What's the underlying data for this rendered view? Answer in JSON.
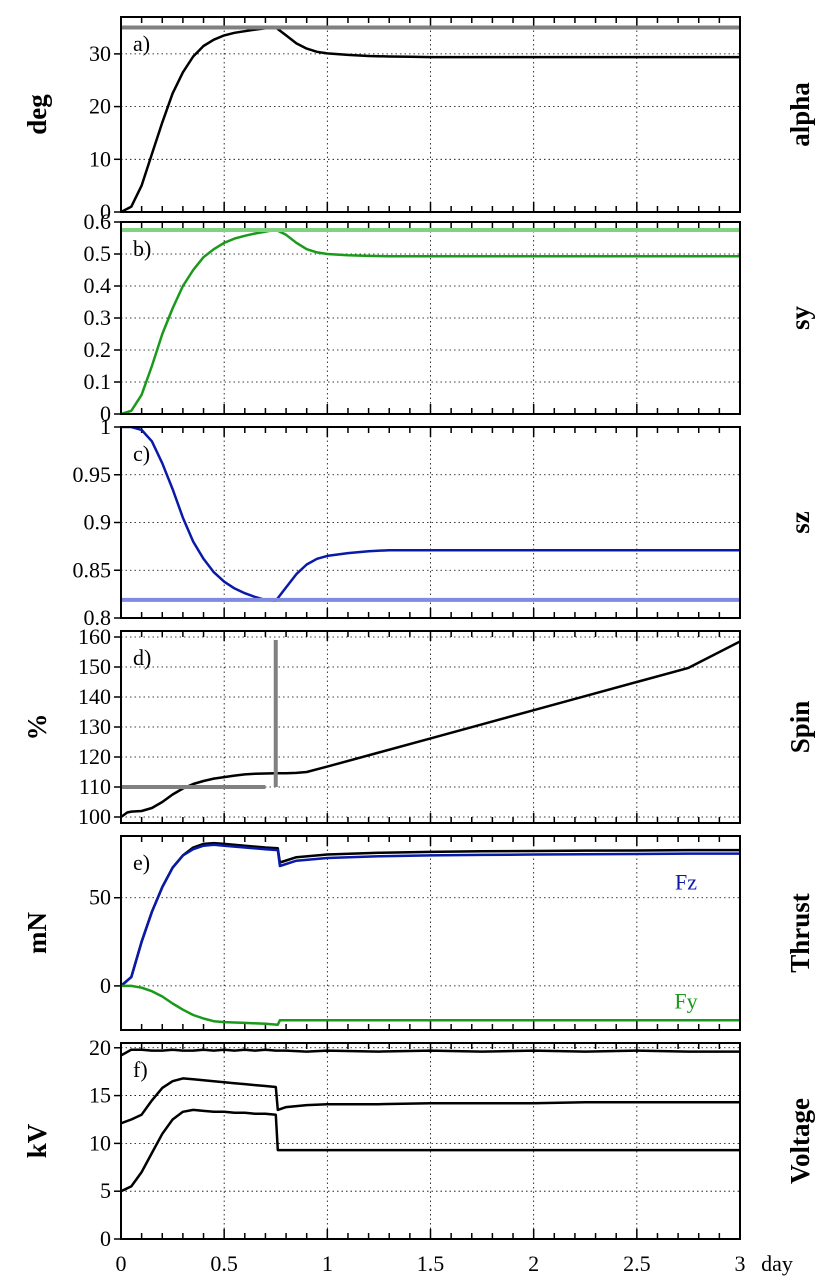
{
  "chart_data": [
    {
      "type": "line",
      "panel_label": "a)",
      "ylabel": "deg",
      "right_label": "alpha",
      "ylim": [
        0,
        37
      ],
      "yticks": [
        0,
        10,
        20,
        30
      ],
      "x": [
        0,
        0.05,
        0.1,
        0.15,
        0.2,
        0.25,
        0.3,
        0.35,
        0.4,
        0.45,
        0.5,
        0.55,
        0.6,
        0.65,
        0.7,
        0.75,
        0.8,
        0.85,
        0.9,
        0.95,
        1.0,
        1.1,
        1.2,
        1.3,
        1.4,
        1.5,
        1.75,
        2.0,
        2.25,
        2.5,
        2.75,
        3.0
      ],
      "series": [
        {
          "color": "#000000",
          "values": [
            0,
            1,
            5,
            11,
            17,
            22.5,
            26.5,
            29.5,
            31.5,
            32.7,
            33.5,
            34.0,
            34.3,
            34.6,
            34.85,
            35.0,
            33.5,
            32.0,
            31.0,
            30.4,
            30.1,
            29.8,
            29.6,
            29.5,
            29.45,
            29.4,
            29.4,
            29.4,
            29.4,
            29.4,
            29.4,
            29.4
          ]
        },
        {
          "color": "#808080",
          "values": [
            35,
            35,
            35,
            35,
            35,
            35,
            35,
            35,
            35,
            35,
            35,
            35,
            35,
            35,
            35,
            35,
            35,
            35,
            35,
            35,
            35,
            35,
            35,
            35,
            35,
            35,
            35,
            35,
            35,
            35,
            35,
            35
          ]
        }
      ]
    },
    {
      "type": "line",
      "panel_label": "b)",
      "ylabel": "",
      "right_label": "sy",
      "ylim": [
        0,
        0.6
      ],
      "yticks": [
        0,
        0.1,
        0.2,
        0.3,
        0.4,
        0.5,
        0.6
      ],
      "x": [
        0,
        0.05,
        0.1,
        0.15,
        0.2,
        0.25,
        0.3,
        0.35,
        0.4,
        0.45,
        0.5,
        0.55,
        0.6,
        0.65,
        0.7,
        0.75,
        0.8,
        0.85,
        0.9,
        0.95,
        1.0,
        1.1,
        1.2,
        1.3,
        1.4,
        1.5,
        1.75,
        2.0,
        2.25,
        2.5,
        2.75,
        3.0
      ],
      "series": [
        {
          "color": "#1a9a1a",
          "values": [
            0,
            0.01,
            0.06,
            0.15,
            0.25,
            0.33,
            0.4,
            0.45,
            0.49,
            0.515,
            0.535,
            0.548,
            0.557,
            0.564,
            0.57,
            0.576,
            0.56,
            0.535,
            0.515,
            0.505,
            0.5,
            0.496,
            0.494,
            0.493,
            0.493,
            0.493,
            0.493,
            0.493,
            0.493,
            0.493,
            0.493,
            0.493
          ]
        },
        {
          "color": "#7fd27f",
          "values": [
            0.575,
            0.575,
            0.575,
            0.575,
            0.575,
            0.575,
            0.575,
            0.575,
            0.575,
            0.575,
            0.575,
            0.575,
            0.575,
            0.575,
            0.575,
            0.575,
            0.575,
            0.575,
            0.575,
            0.575,
            0.575,
            0.575,
            0.575,
            0.575,
            0.575,
            0.575,
            0.575,
            0.575,
            0.575,
            0.575,
            0.575,
            0.575
          ]
        }
      ]
    },
    {
      "type": "line",
      "panel_label": "c)",
      "ylabel": "",
      "right_label": "sz",
      "ylim": [
        0.8,
        1.0
      ],
      "yticks": [
        0.8,
        0.85,
        0.9,
        0.95,
        1
      ],
      "x": [
        0,
        0.05,
        0.1,
        0.15,
        0.2,
        0.25,
        0.3,
        0.35,
        0.4,
        0.45,
        0.5,
        0.55,
        0.6,
        0.65,
        0.7,
        0.75,
        0.8,
        0.85,
        0.9,
        0.95,
        1.0,
        1.1,
        1.2,
        1.3,
        1.4,
        1.5,
        1.75,
        2.0,
        2.25,
        2.5,
        2.75,
        3.0
      ],
      "series": [
        {
          "color": "#0a1aa8",
          "values": [
            1.0,
            1.0,
            0.997,
            0.985,
            0.962,
            0.935,
            0.905,
            0.88,
            0.862,
            0.848,
            0.838,
            0.831,
            0.826,
            0.822,
            0.819,
            0.818,
            0.832,
            0.846,
            0.856,
            0.862,
            0.865,
            0.868,
            0.87,
            0.871,
            0.871,
            0.871,
            0.871,
            0.871,
            0.871,
            0.871,
            0.871,
            0.871
          ]
        },
        {
          "color": "#7f8ae0",
          "values": [
            0.819,
            0.819,
            0.819,
            0.819,
            0.819,
            0.819,
            0.819,
            0.819,
            0.819,
            0.819,
            0.819,
            0.819,
            0.819,
            0.819,
            0.819,
            0.819,
            0.819,
            0.819,
            0.819,
            0.819,
            0.819,
            0.819,
            0.819,
            0.819,
            0.819,
            0.819,
            0.819,
            0.819,
            0.819,
            0.819,
            0.819,
            0.819
          ]
        }
      ]
    },
    {
      "type": "line",
      "panel_label": "d)",
      "ylabel": "%",
      "right_label": "Spin",
      "ylim": [
        98,
        162
      ],
      "yticks": [
        100,
        110,
        120,
        130,
        140,
        150,
        160
      ],
      "x": [
        0,
        0.03,
        0.05,
        0.1,
        0.15,
        0.2,
        0.25,
        0.3,
        0.35,
        0.4,
        0.45,
        0.5,
        0.55,
        0.6,
        0.65,
        0.7,
        0.75,
        0.8,
        0.85,
        0.9,
        1.0,
        1.25,
        1.5,
        1.75,
        2.0,
        2.25,
        2.5,
        2.75,
        3.0
      ],
      "series": [
        {
          "color": "#000000",
          "values": [
            100,
            101.5,
            101.8,
            102,
            103,
            105,
            107.5,
            109.5,
            111,
            112,
            112.8,
            113.3,
            113.8,
            114.2,
            114.4,
            114.5,
            114.6,
            114.6,
            114.7,
            115,
            116.8,
            121.5,
            126.2,
            130.9,
            135.6,
            140.3,
            145.0,
            149.7,
            158.5
          ]
        },
        {
          "color": "#808080",
          "values": [
            110,
            110,
            110,
            110,
            110,
            110,
            110,
            110,
            110,
            110,
            110,
            110,
            110,
            110,
            110,
            110,
            null,
            null,
            null,
            null,
            null,
            null,
            null,
            null,
            null,
            null,
            null,
            null,
            null
          ]
        }
      ],
      "extra_lines": [
        {
          "color": "#808080",
          "x": [
            0.75,
            0.75
          ],
          "y": [
            110,
            159
          ]
        }
      ]
    },
    {
      "type": "line",
      "panel_label": "e)",
      "ylabel": "mN",
      "right_label": "Thrust",
      "ylim": [
        -25,
        85
      ],
      "yticks": [
        0,
        50
      ],
      "x": [
        0,
        0.05,
        0.1,
        0.15,
        0.2,
        0.25,
        0.3,
        0.35,
        0.4,
        0.45,
        0.5,
        0.6,
        0.7,
        0.76,
        0.77,
        0.85,
        1.0,
        1.25,
        1.5,
        1.75,
        2.0,
        2.25,
        2.5,
        2.75,
        3.0
      ],
      "series": [
        {
          "color": "#000000",
          "values": [
            0,
            5,
            25,
            42,
            56,
            67,
            74,
            78.5,
            80.5,
            81,
            80.5,
            79.5,
            78.5,
            78,
            70,
            73,
            74.5,
            75.5,
            76,
            76.3,
            76.5,
            76.7,
            76.8,
            77,
            77
          ]
        },
        {
          "color": "#0a1aa8",
          "values": [
            0,
            5,
            25,
            42,
            56,
            67,
            74,
            77.5,
            79.5,
            80,
            79.5,
            78.5,
            77.5,
            77,
            68,
            71,
            72.5,
            73.5,
            74,
            74.3,
            74.5,
            74.7,
            74.8,
            75,
            75
          ],
          "name": "Fz"
        },
        {
          "color": "#1a9a1a",
          "values": [
            0,
            0,
            -1,
            -3,
            -6,
            -10,
            -13.5,
            -16.5,
            -18.5,
            -20,
            -20.5,
            -21,
            -21.5,
            -22,
            -19.5,
            -19.5,
            -19.5,
            -19.5,
            -19.5,
            -19.5,
            -19.5,
            -19.5,
            -19.5,
            -19.5,
            -19.5
          ],
          "name": "Fy"
        }
      ]
    },
    {
      "type": "line",
      "panel_label": "f)",
      "ylabel": "kV",
      "right_label": "Voltage",
      "xlabel": "day",
      "ylim": [
        0,
        20.5
      ],
      "yticks": [
        0,
        5,
        10,
        15,
        20
      ],
      "xlim": [
        0,
        3
      ],
      "xticks": [
        0,
        0.5,
        1,
        1.5,
        2,
        2.5,
        3
      ],
      "x": [
        0,
        0.05,
        0.1,
        0.15,
        0.2,
        0.25,
        0.3,
        0.35,
        0.4,
        0.45,
        0.5,
        0.55,
        0.6,
        0.65,
        0.7,
        0.75,
        0.76,
        0.8,
        0.9,
        1.0,
        1.25,
        1.5,
        1.75,
        2.0,
        2.25,
        2.5,
        2.75,
        3.0
      ],
      "series": [
        {
          "color": "#000000",
          "values": [
            19.2,
            19.8,
            19.8,
            19.7,
            19.7,
            19.8,
            19.7,
            19.7,
            19.8,
            19.7,
            19.8,
            19.7,
            19.8,
            19.7,
            19.8,
            19.7,
            19.7,
            19.7,
            19.6,
            19.7,
            19.6,
            19.7,
            19.6,
            19.7,
            19.6,
            19.7,
            19.6,
            19.6
          ]
        },
        {
          "color": "#000000",
          "values": [
            12.1,
            12.5,
            13.0,
            14.5,
            15.8,
            16.5,
            16.8,
            16.7,
            16.6,
            16.5,
            16.4,
            16.3,
            16.2,
            16.1,
            16.0,
            15.9,
            13.5,
            13.8,
            14.0,
            14.1,
            14.1,
            14.2,
            14.2,
            14.2,
            14.3,
            14.3,
            14.3,
            14.3
          ]
        },
        {
          "color": "#000000",
          "values": [
            5.0,
            5.5,
            7.0,
            9.0,
            11.0,
            12.5,
            13.3,
            13.5,
            13.4,
            13.3,
            13.3,
            13.2,
            13.2,
            13.1,
            13.1,
            13.0,
            9.3,
            9.3,
            9.3,
            9.3,
            9.3,
            9.3,
            9.3,
            9.3,
            9.3,
            9.3,
            9.3,
            9.3
          ]
        }
      ]
    }
  ]
}
